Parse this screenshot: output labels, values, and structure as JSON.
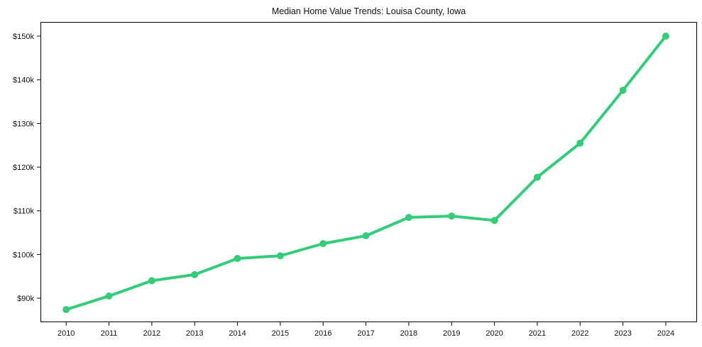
{
  "chart_data": {
    "type": "line",
    "title": "Median Home Value Trends: Louisa County, Iowa",
    "x": [
      2010,
      2011,
      2012,
      2013,
      2014,
      2015,
      2016,
      2017,
      2018,
      2019,
      2020,
      2021,
      2022,
      2023,
      2024
    ],
    "series": [
      {
        "name": "Median home value",
        "color": "#33cc78",
        "values": [
          87400,
          90500,
          94000,
          95400,
          99100,
          99700,
          102500,
          104300,
          108500,
          108800,
          107800,
          117700,
          125500,
          137600,
          150000
        ]
      }
    ],
    "xlabel": "",
    "ylabel": "",
    "x_ticks": [
      2010,
      2011,
      2012,
      2013,
      2014,
      2015,
      2016,
      2017,
      2018,
      2019,
      2020,
      2021,
      2022,
      2023,
      2024
    ],
    "x_tick_labels": [
      "2010",
      "2011",
      "2012",
      "2013",
      "2014",
      "2015",
      "2016",
      "2017",
      "2018",
      "2019",
      "2020",
      "2021",
      "2022",
      "2023",
      "2024"
    ],
    "y_ticks": [
      90000,
      100000,
      110000,
      120000,
      130000,
      140000,
      150000
    ],
    "y_tick_labels": [
      "$90k",
      "$100k",
      "$110k",
      "$120k",
      "$130k",
      "$140k",
      "$150k"
    ],
    "x_range": [
      2009.4,
      2024.73
    ],
    "y_range": [
      84500,
      153250
    ],
    "ylim": [
      84500,
      153250
    ],
    "grid": false,
    "legend": "none",
    "line_width": 4,
    "marker": "circle",
    "marker_radius": 5,
    "axis_color": "#000000",
    "text_color": "#111111",
    "background": "#ffffff"
  }
}
